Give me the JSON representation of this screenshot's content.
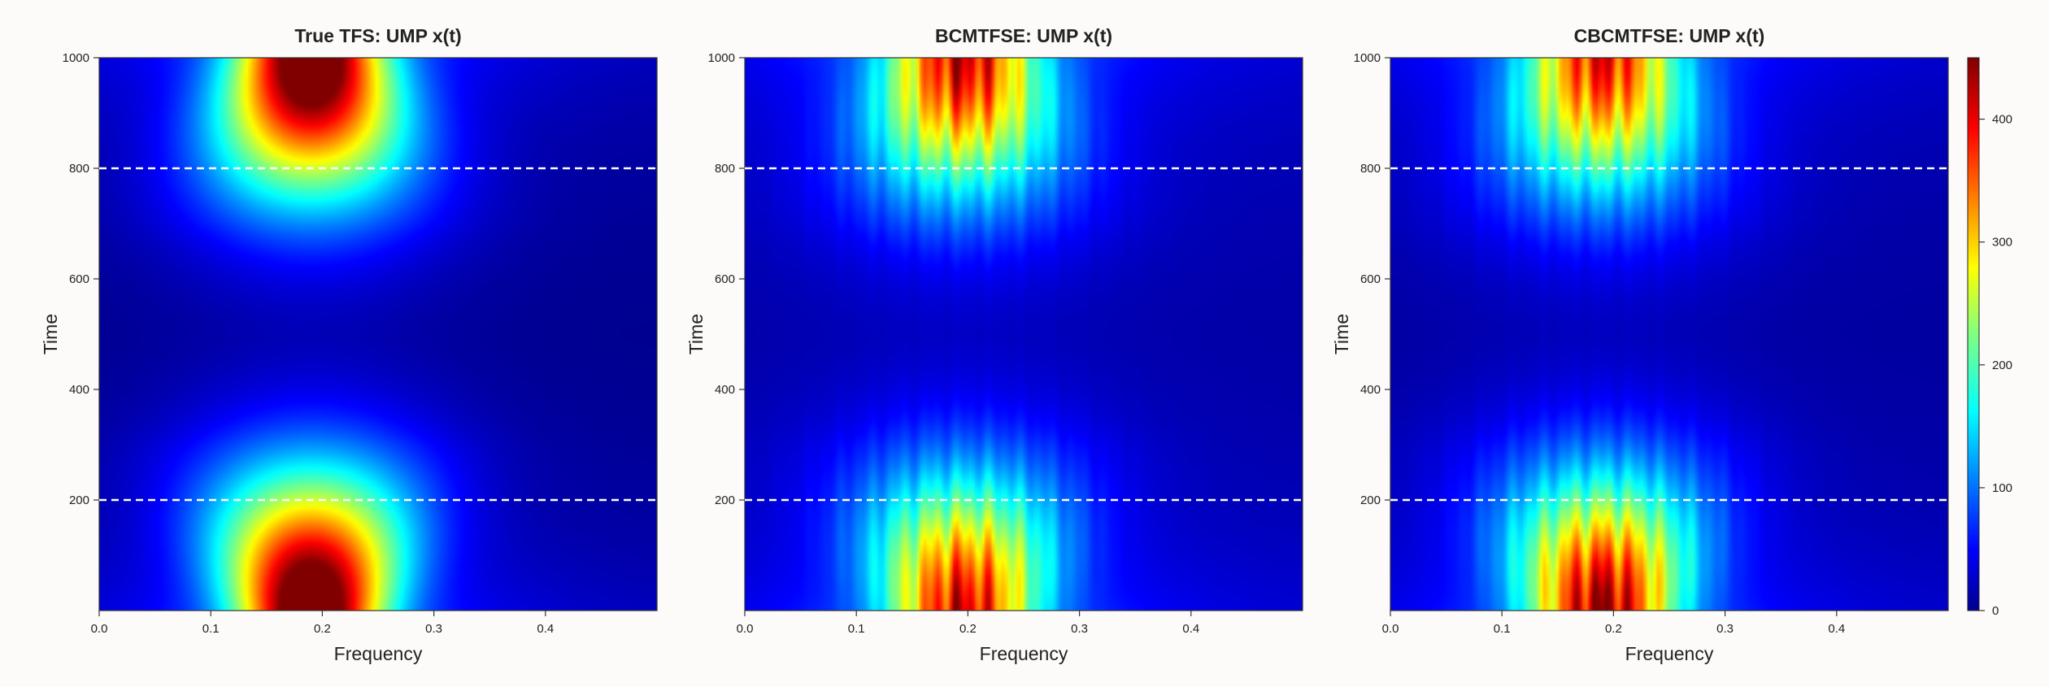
{
  "chart_data": {
    "type": "heatmap",
    "xlabel": "Frequency",
    "ylabel": "Time",
    "xlim": [
      0,
      0.5
    ],
    "ylim": [
      0,
      1000
    ],
    "xticks": [
      0.0,
      0.1,
      0.2,
      0.3,
      0.4
    ],
    "xtick_labels": [
      "0.0",
      "0.1",
      "0.2",
      "0.3",
      "0.4"
    ],
    "yticks": [
      200,
      400,
      600,
      800,
      1000
    ],
    "ytick_labels": [
      "200",
      "400",
      "600",
      "800",
      "1000"
    ],
    "reference_lines_time": [
      200,
      800
    ],
    "colormap": "jet",
    "colorbar": {
      "min": 0,
      "max": 450,
      "ticks": [
        0,
        100,
        200,
        300,
        400
      ],
      "tick_labels": [
        "0",
        "100",
        "200",
        "300",
        "400"
      ]
    },
    "panels": [
      {
        "title": "True TFS: UMP x(t)",
        "peak_frequency": 0.19,
        "peaks": [
          {
            "time": 0,
            "value": 450
          },
          {
            "time": 1000,
            "value": 450
          }
        ],
        "value_at_time_500": 5
      },
      {
        "title": "BCMTFSE:  UMP x(t)",
        "peak_frequency": 0.195,
        "peaks": [
          {
            "time": 0,
            "value": 390
          },
          {
            "time": 1000,
            "value": 400
          }
        ],
        "value_at_time_500": 15
      },
      {
        "title": "CBCMTFSE:  UMP x(t)",
        "peak_frequency": 0.19,
        "peaks": [
          {
            "time": 0,
            "value": 430
          },
          {
            "time": 1000,
            "value": 380
          }
        ],
        "value_at_time_500": 12
      }
    ]
  }
}
